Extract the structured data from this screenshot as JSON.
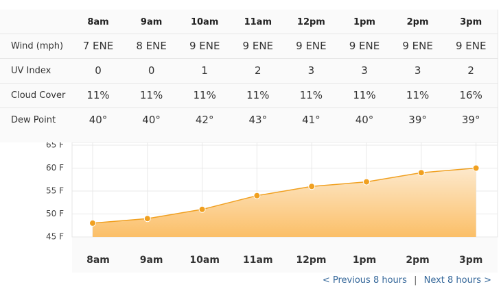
{
  "table": {
    "hours": [
      "8am",
      "9am",
      "10am",
      "11am",
      "12pm",
      "1pm",
      "2pm",
      "3pm"
    ],
    "rows": [
      {
        "label": "Wind (mph)",
        "cells": [
          "7 ENE",
          "8 ENE",
          "9 ENE",
          "9 ENE",
          "9 ENE",
          "9 ENE",
          "9 ENE",
          "9 ENE"
        ]
      },
      {
        "label": "UV Index",
        "cells": [
          0,
          0,
          1,
          2,
          3,
          3,
          3,
          2
        ]
      },
      {
        "label": "Cloud Cover",
        "cells": [
          "11%",
          "11%",
          "11%",
          "11%",
          "11%",
          "11%",
          "11%",
          "16%"
        ]
      },
      {
        "label": "Dew Point",
        "cells": [
          "40°",
          "40°",
          "42°",
          "43°",
          "41°",
          "40°",
          "39°",
          "39°"
        ]
      }
    ]
  },
  "chart_data": {
    "type": "area",
    "categories": [
      "8am",
      "9am",
      "10am",
      "11am",
      "12pm",
      "1pm",
      "2pm",
      "3pm"
    ],
    "values": [
      48,
      49,
      51,
      54,
      56,
      57,
      59,
      60
    ],
    "color": "#f0a020",
    "ylim": [
      45,
      65
    ],
    "yticks": [
      {
        "value": 45,
        "label": "45 F"
      },
      {
        "value": 50,
        "label": "50 F"
      },
      {
        "value": 55,
        "label": "55 F"
      },
      {
        "value": 60,
        "label": "60 F"
      },
      {
        "value": 65,
        "label": "65 F"
      }
    ],
    "grid": true
  },
  "nav": {
    "prev": "< Previous 8 hours",
    "separator": "|",
    "next": "Next 8 hours >"
  }
}
